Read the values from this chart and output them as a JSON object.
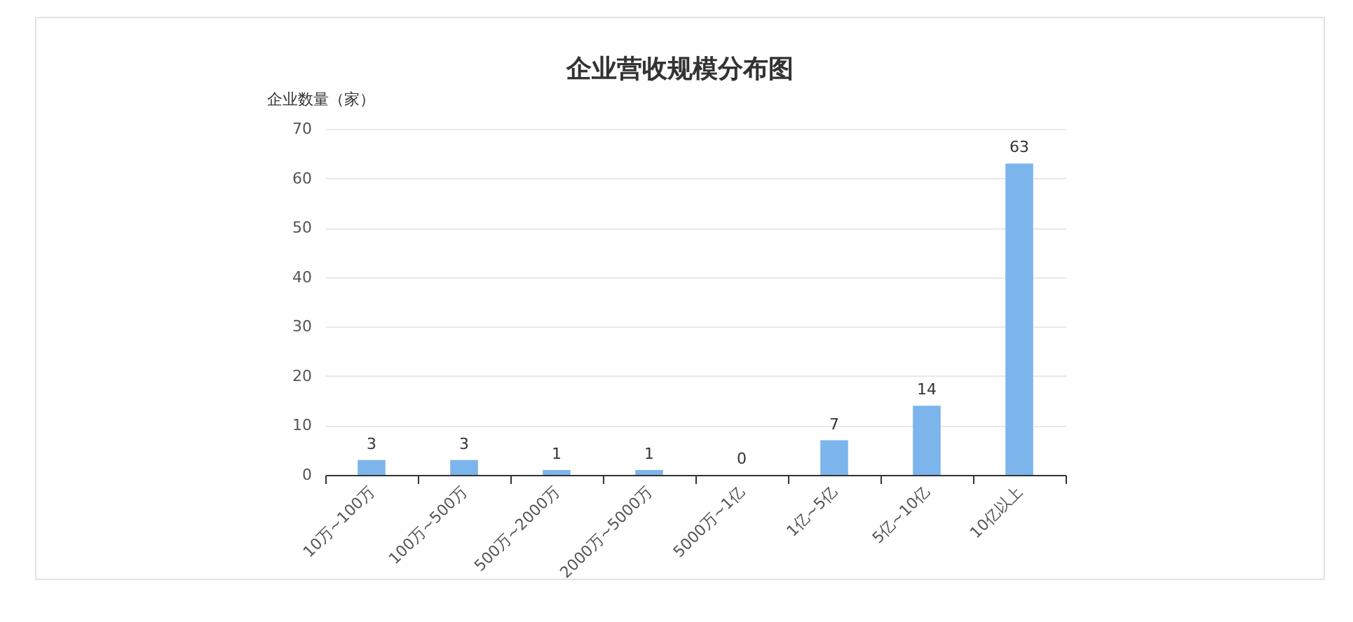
{
  "chart_data": {
    "type": "bar",
    "title": "企业营收规模分布图",
    "ylabel": "企业数量（家）",
    "categories": [
      "10万~100万",
      "100万~500万",
      "500万~2000万",
      "2000万~5000万",
      "5000万~1亿",
      "1亿~5亿",
      "5亿~10亿",
      "10亿以上"
    ],
    "values": [
      3,
      3,
      1,
      1,
      0,
      7,
      14,
      63
    ],
    "color": "#7cb5ec",
    "ylim": [
      0,
      70
    ],
    "yticks": [
      0,
      10,
      20,
      30,
      40,
      50,
      60,
      70
    ],
    "grid": "y",
    "data_labels": true
  }
}
